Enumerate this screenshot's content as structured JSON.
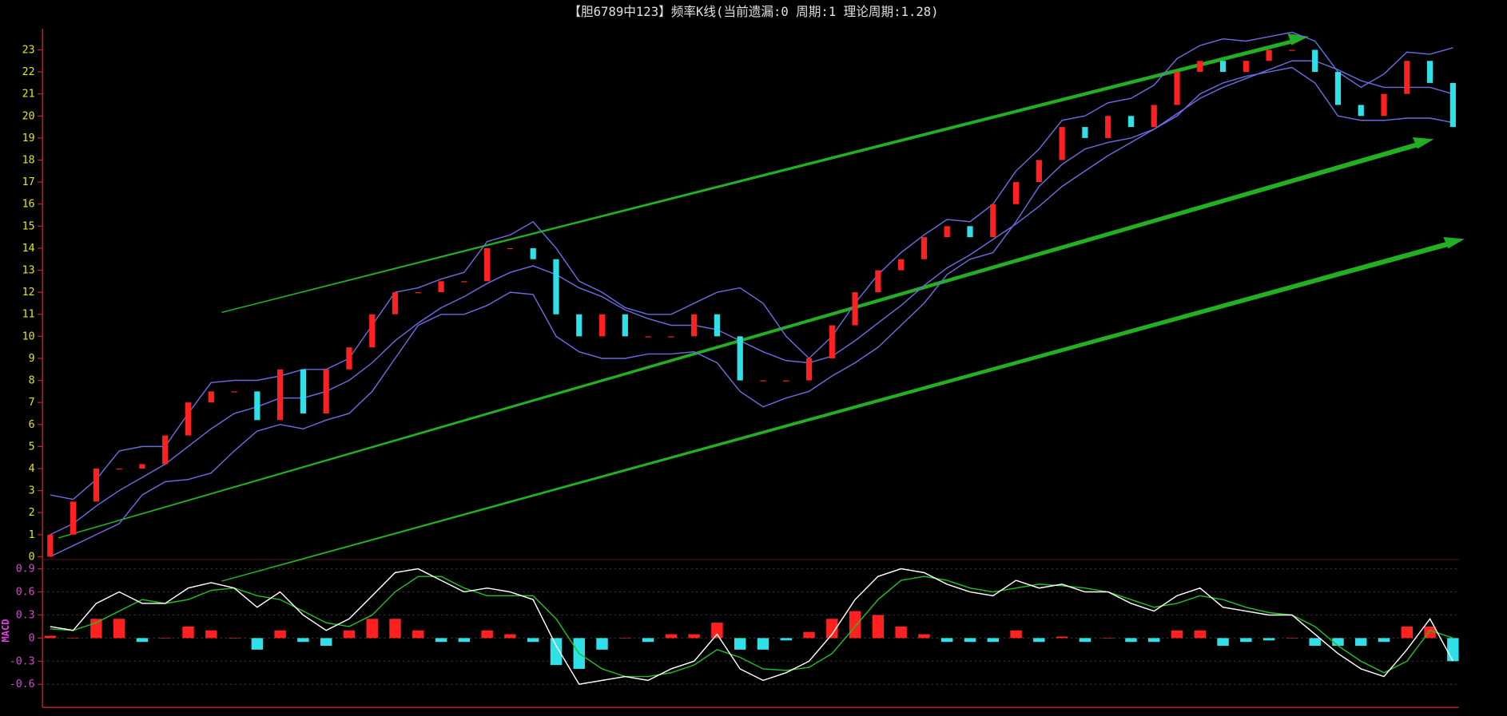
{
  "chart_data": [
    {
      "type": "candlestick",
      "title": "【胆6789中123】频率K线(当前遗漏:0 周期:1 理论周期:1.28)",
      "ylim": [
        0,
        24
      ],
      "yticks": [
        0,
        1,
        2,
        3,
        4,
        5,
        6,
        7,
        8,
        9,
        10,
        11,
        12,
        13,
        14,
        15,
        16,
        17,
        18,
        19,
        20,
        21,
        22,
        23
      ],
      "up_color": "#ff2020",
      "down_color": "#30e0e8",
      "band_color": "#6a6ae0",
      "tick_color": "#e8e800",
      "close": [
        1,
        2.5,
        4,
        4,
        4.2,
        5.5,
        7,
        7.5,
        7.5,
        6.2,
        8.5,
        6.5,
        8.5,
        9.5,
        11,
        12,
        12,
        12.5,
        12.5,
        14,
        14,
        13.5,
        11,
        10,
        11,
        10,
        10,
        10,
        11,
        10,
        8,
        8,
        8,
        9,
        10.5,
        12,
        13,
        13.5,
        14.5,
        15,
        14.5,
        16,
        17,
        18,
        19.5,
        19,
        20,
        19.5,
        20.5,
        22,
        22.5,
        22,
        22.5,
        23,
        23,
        22,
        20.5,
        20,
        21,
        22.5,
        21.5,
        19.5
      ],
      "upper": [
        2.8,
        2.6,
        3.5,
        4.8,
        5,
        5,
        6.5,
        7.9,
        8,
        8,
        8.2,
        8.5,
        8.5,
        9,
        10.5,
        12,
        12.2,
        12.6,
        12.9,
        14.3,
        14.6,
        15.2,
        14,
        12.5,
        12,
        11.3,
        11,
        11,
        11.5,
        12,
        12.2,
        11.5,
        10,
        9,
        10,
        11.5,
        12.8,
        13.8,
        14.6,
        15.3,
        15.2,
        16,
        17.5,
        18.5,
        19.8,
        20,
        20.6,
        20.8,
        21.4,
        22.6,
        23.2,
        23.5,
        23.4,
        23.6,
        23.8,
        23.4,
        22,
        21.3,
        21.9,
        22.9,
        22.8,
        23.1
      ],
      "middle": [
        1,
        1.5,
        2.3,
        3,
        3.6,
        4.2,
        5,
        5.8,
        6.5,
        6.8,
        7.2,
        7.2,
        7.5,
        8,
        8.8,
        9.8,
        10.6,
        11.3,
        11.8,
        12.4,
        12.9,
        13.2,
        12.8,
        12.2,
        11.8,
        11.2,
        10.8,
        10.5,
        10.5,
        10.3,
        9.8,
        9.3,
        8.9,
        8.8,
        9.1,
        9.8,
        10.6,
        11.4,
        12.3,
        13.1,
        13.7,
        14.4,
        15.1,
        15.9,
        16.8,
        17.5,
        18.2,
        18.8,
        19.4,
        20.1,
        20.8,
        21.3,
        21.7,
        22.1,
        22.5,
        22.5,
        22.1,
        21.6,
        21.3,
        21.3,
        21.3,
        21
      ],
      "lower": [
        0,
        0.5,
        1,
        1.5,
        2.8,
        3.4,
        3.5,
        3.8,
        4.8,
        5.7,
        6,
        5.8,
        6.2,
        6.5,
        7.5,
        9,
        10.5,
        11,
        11,
        11.4,
        12,
        11.9,
        10,
        9.3,
        9,
        9,
        9.2,
        9.2,
        9.3,
        8.8,
        7.5,
        6.8,
        7.2,
        7.5,
        8.2,
        8.8,
        9.5,
        10.5,
        11.5,
        12.8,
        13.5,
        13.8,
        15.2,
        16.8,
        17.8,
        18.5,
        18.8,
        19,
        19.4,
        20,
        21,
        21.5,
        21.8,
        22,
        22.2,
        21.5,
        20,
        19.8,
        19.8,
        19.9,
        19.9,
        19.7
      ]
    },
    {
      "type": "macd",
      "label": "MACD",
      "ylim": [
        -0.9,
        1.02
      ],
      "yticks": [
        0.9,
        0.6,
        0.3,
        0,
        -0.3,
        -0.6
      ],
      "grid": true,
      "tick_color": "#e040e0",
      "dif_color": "#ffffff",
      "dea_color": "#20c020",
      "pos_color": "#ff2020",
      "neg_color": "#30e0e8",
      "dif": [
        0.15,
        0.1,
        0.45,
        0.6,
        0.45,
        0.45,
        0.65,
        0.72,
        0.65,
        0.4,
        0.6,
        0.3,
        0.1,
        0.25,
        0.55,
        0.85,
        0.9,
        0.75,
        0.6,
        0.65,
        0.6,
        0.5,
        -0.1,
        -0.6,
        -0.55,
        -0.5,
        -0.55,
        -0.4,
        -0.3,
        0.05,
        -0.4,
        -0.55,
        -0.45,
        -0.3,
        0.05,
        0.5,
        0.8,
        0.9,
        0.85,
        0.7,
        0.6,
        0.55,
        0.75,
        0.65,
        0.7,
        0.6,
        0.6,
        0.45,
        0.35,
        0.55,
        0.65,
        0.4,
        0.35,
        0.3,
        0.3,
        0.05,
        -0.2,
        -0.4,
        -0.5,
        -0.15,
        0.25,
        -0.3
      ],
      "dea": [
        0.12,
        0.1,
        0.2,
        0.35,
        0.5,
        0.45,
        0.5,
        0.62,
        0.65,
        0.55,
        0.5,
        0.35,
        0.2,
        0.15,
        0.3,
        0.6,
        0.8,
        0.8,
        0.65,
        0.55,
        0.55,
        0.55,
        0.25,
        -0.2,
        -0.4,
        -0.5,
        -0.5,
        -0.45,
        -0.35,
        -0.15,
        -0.25,
        -0.4,
        -0.42,
        -0.38,
        -0.2,
        0.15,
        0.5,
        0.75,
        0.8,
        0.75,
        0.65,
        0.6,
        0.65,
        0.7,
        0.68,
        0.65,
        0.6,
        0.5,
        0.4,
        0.45,
        0.55,
        0.5,
        0.4,
        0.33,
        0.3,
        0.15,
        -0.1,
        -0.3,
        -0.45,
        -0.3,
        0.1,
        0.0
      ],
      "hist": [
        0.03,
        0,
        0.25,
        0.25,
        -0.05,
        0,
        0.15,
        0.1,
        0,
        -0.15,
        0.1,
        -0.05,
        -0.1,
        0.1,
        0.25,
        0.25,
        0.1,
        -0.05,
        -0.05,
        0.1,
        0.05,
        -0.05,
        -0.35,
        -0.4,
        -0.15,
        0,
        -0.05,
        0.05,
        0.05,
        0.2,
        -0.15,
        -0.15,
        -0.03,
        0.08,
        0.25,
        0.35,
        0.3,
        0.15,
        0.05,
        -0.05,
        -0.05,
        -0.05,
        0.1,
        -0.05,
        0.02,
        -0.05,
        0,
        -0.05,
        -0.05,
        0.1,
        0.1,
        -0.1,
        -0.05,
        -0.03,
        0,
        -0.1,
        -0.1,
        -0.1,
        -0.05,
        0.15,
        0.15,
        -0.3
      ]
    }
  ]
}
